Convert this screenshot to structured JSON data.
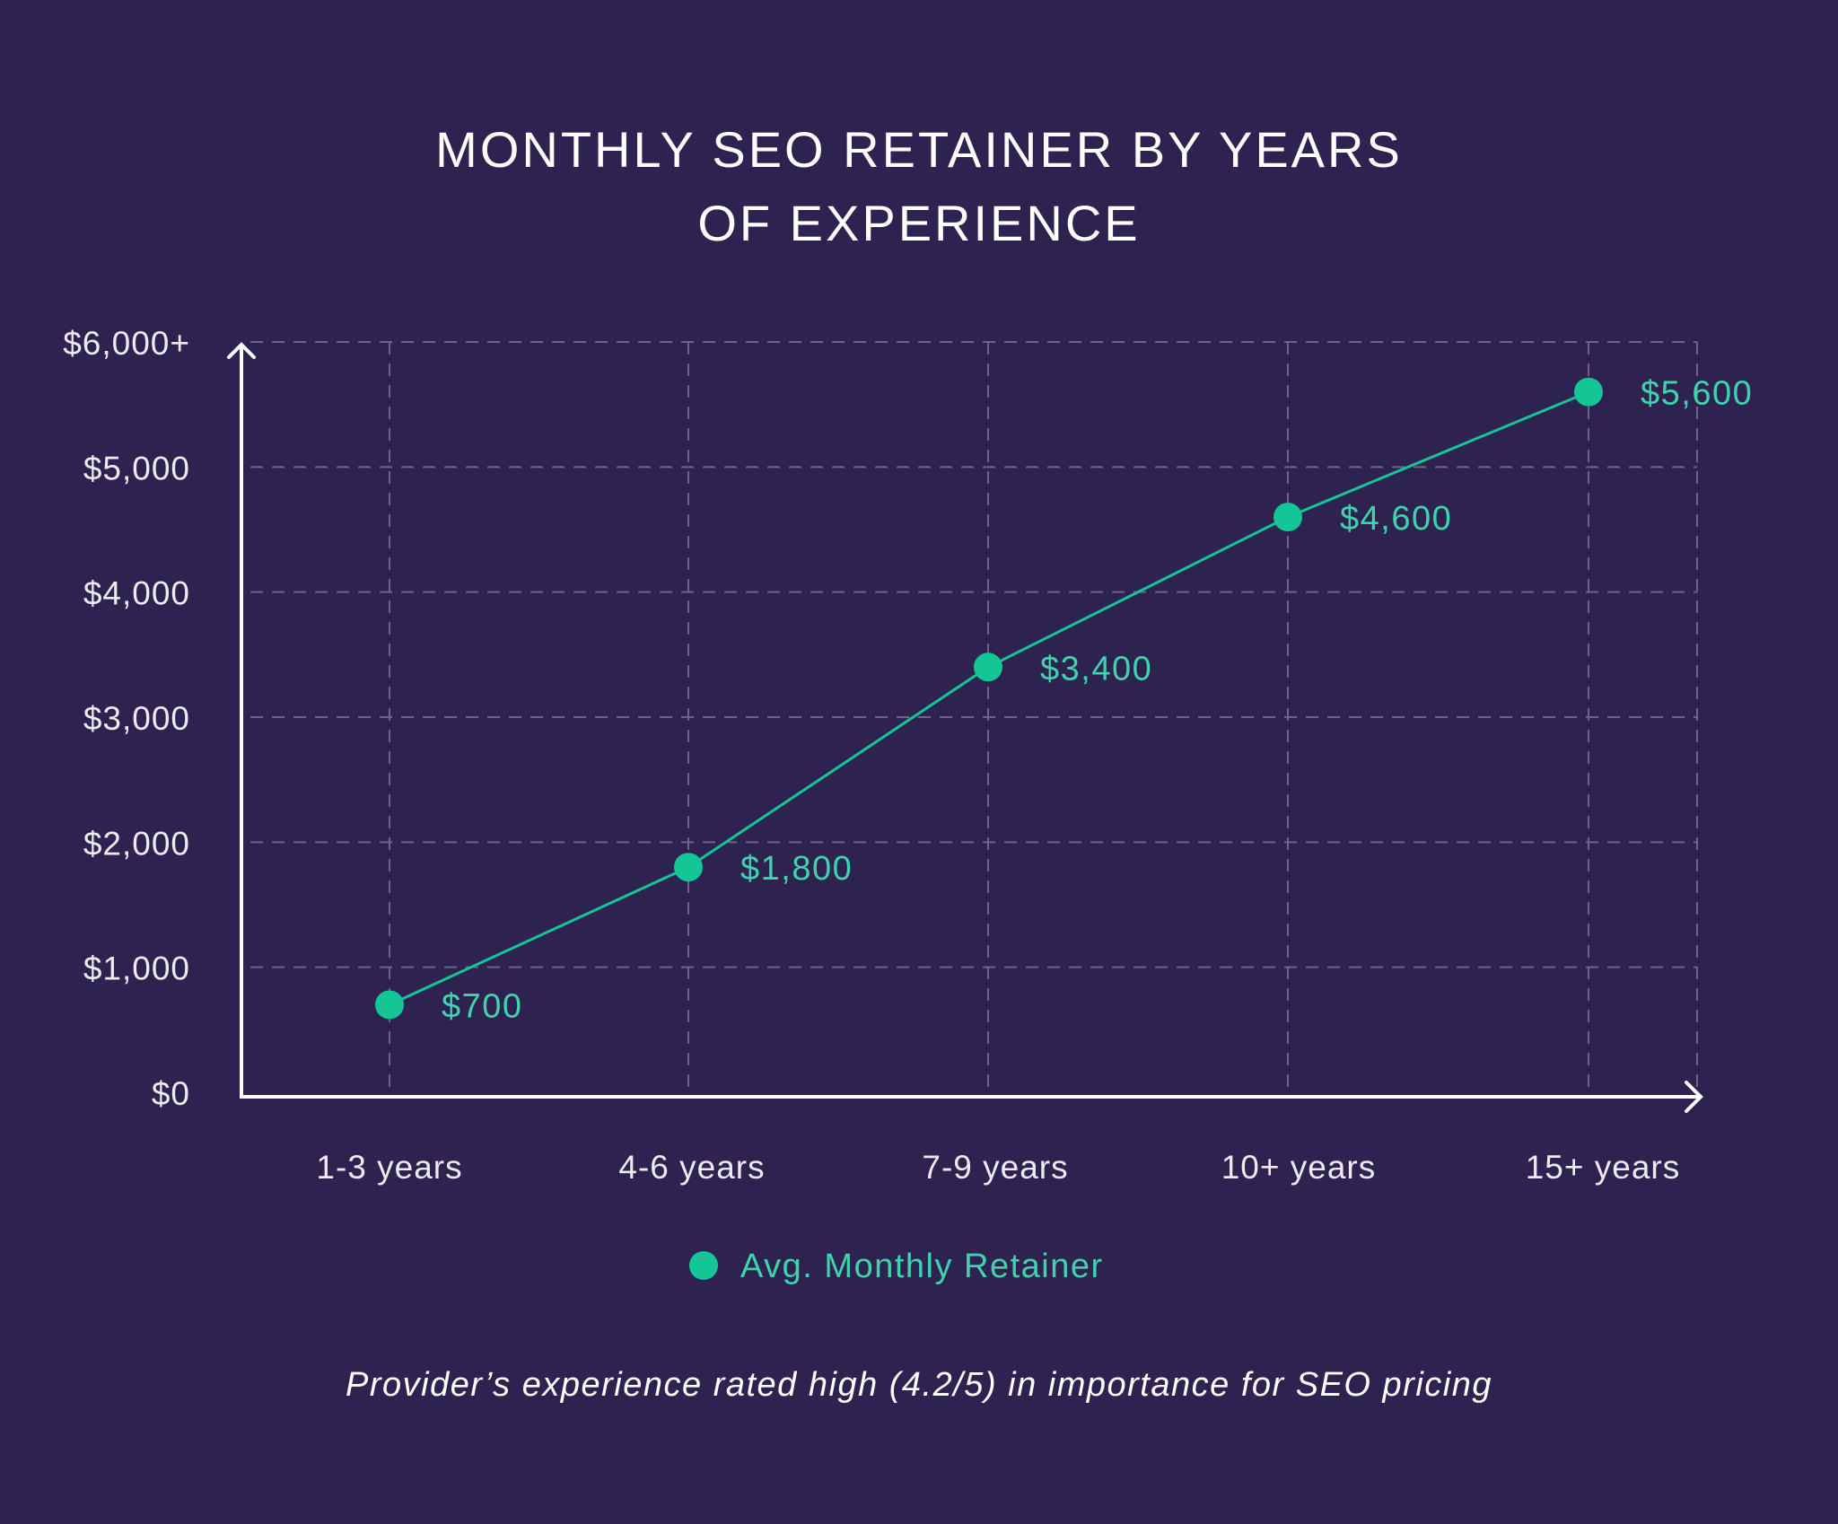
{
  "chart_data": {
    "type": "line",
    "title": [
      "MONTHLY SEO RETAINER BY YEARS",
      "OF EXPERIENCE"
    ],
    "categories": [
      "1-3 years",
      "4-6 years",
      "7-9 years",
      "10+ years",
      "15+ years"
    ],
    "series": [
      {
        "name": "Avg. Monthly Retainer",
        "values": [
          700,
          1800,
          3400,
          4600,
          5600
        ],
        "labels": [
          "$700",
          "$1,800",
          "$3,400",
          "$4,600",
          "$5,600"
        ]
      }
    ],
    "yticks": [
      0,
      1000,
      2000,
      3000,
      4000,
      5000,
      6000
    ],
    "ytick_labels": [
      "$0",
      "$1,000",
      "$2,000",
      "$3,000",
      "$4,000",
      "$5,000",
      "$6,000+"
    ],
    "ylim": [
      0,
      6000
    ],
    "grid": true,
    "legend_position": "bottom",
    "footnote": "Provider’s experience rated high (4.2/5) in importance for SEO pricing",
    "colors": {
      "background": "#2e2350",
      "series": "#14c596",
      "label": "#3fd3ad",
      "axis": "#ffffff",
      "grid": "#6d6488"
    }
  }
}
